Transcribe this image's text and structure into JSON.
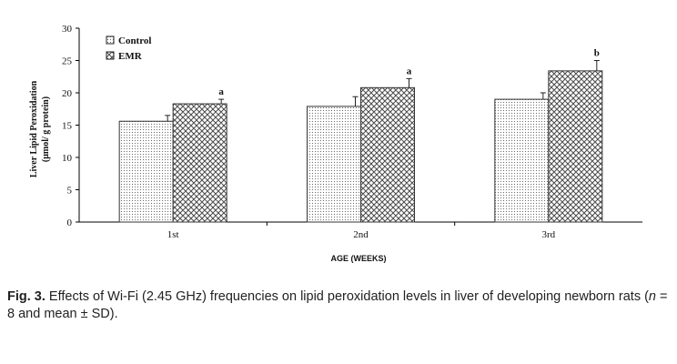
{
  "chart_data": {
    "type": "bar",
    "title": "",
    "xlabel": "AGE (WEEKS)",
    "ylabel": [
      "Liver Lipid Peroxidation",
      "(μmol/ g protein)"
    ],
    "categories": [
      "1st",
      "2nd",
      "3rd"
    ],
    "ylim": [
      0,
      30
    ],
    "yticks": [
      "0",
      "5",
      "10",
      "15",
      "20",
      "25",
      "30"
    ],
    "legend_position": "top-left",
    "grid": false,
    "series": [
      {
        "name": "Control",
        "pattern": "dots",
        "values": [
          15.6,
          17.9,
          19.0
        ],
        "errors": [
          0.9,
          1.5,
          1.0
        ],
        "annotations": [
          "",
          "",
          ""
        ]
      },
      {
        "name": "EMR",
        "pattern": "crosshatch",
        "values": [
          18.3,
          20.8,
          23.4
        ],
        "errors": [
          0.7,
          1.4,
          1.6
        ],
        "annotations": [
          "a",
          "a",
          "b"
        ]
      }
    ],
    "colors": {
      "bar_stroke": "#333333",
      "axis": "#000000",
      "pattern_ink": "#555555"
    }
  },
  "caption": {
    "label": "Fig. 3.",
    "text_1": " Effects of Wi-Fi (2.45 GHz) frequencies on lipid peroxidation levels in liver of developing newborn rats (",
    "n_symbol": "n",
    "text_2": " = 8 and mean ± SD)."
  }
}
